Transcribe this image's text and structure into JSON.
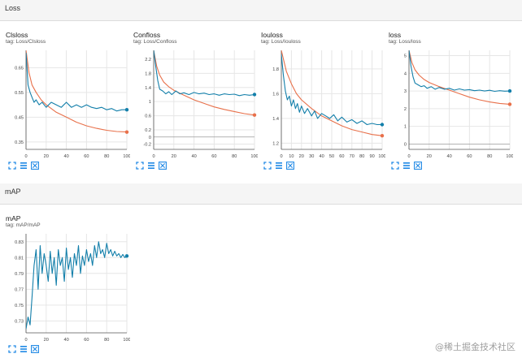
{
  "sections": {
    "loss": {
      "title": "Loss"
    },
    "map": {
      "title": "mAP"
    }
  },
  "colors": {
    "orange": "#e8704a",
    "blue": "#137faa",
    "grid": "#e6e6e6",
    "axis": "#555555"
  },
  "icons": [
    "fit-domain-icon",
    "toggle-log-icon",
    "expand-icon"
  ],
  "charts": [
    {
      "id": "clsloss",
      "title": "Clsloss",
      "tag": "tag: Loss/Clsloss",
      "chart_data": {
        "type": "line",
        "title": "Clsloss",
        "xlim": [
          0,
          100
        ],
        "ylim": [
          0.32,
          0.72
        ],
        "xticks": [
          "0",
          "20",
          "40",
          "60",
          "80",
          "100"
        ],
        "yticks": [
          "0.35",
          "0.45",
          "0.55",
          "0.65"
        ],
        "ytick_values": [
          0.35,
          0.45,
          0.55,
          0.65
        ],
        "series": [
          {
            "color": "orange",
            "x": [
              0,
              3,
              6,
              10,
              15,
              20,
              30,
              40,
              50,
              60,
              70,
              80,
              90,
              100
            ],
            "y": [
              0.72,
              0.63,
              0.58,
              0.55,
              0.52,
              0.5,
              0.47,
              0.45,
              0.43,
              0.415,
              0.405,
              0.397,
              0.392,
              0.39
            ]
          },
          {
            "color": "blue",
            "x": [
              0,
              1,
              2,
              4,
              6,
              8,
              10,
              13,
              16,
              20,
              25,
              30,
              35,
              40,
              45,
              50,
              55,
              60,
              65,
              70,
              75,
              80,
              85,
              90,
              95,
              100
            ],
            "y": [
              0.71,
              0.65,
              0.58,
              0.55,
              0.53,
              0.51,
              0.52,
              0.5,
              0.51,
              0.49,
              0.51,
              0.5,
              0.49,
              0.51,
              0.49,
              0.5,
              0.49,
              0.5,
              0.49,
              0.485,
              0.49,
              0.48,
              0.485,
              0.475,
              0.48,
              0.48
            ]
          }
        ]
      }
    },
    {
      "id": "confloss",
      "title": "Confloss",
      "tag": "tag: Loss/Confloss",
      "chart_data": {
        "type": "line",
        "title": "Confloss",
        "xlim": [
          0,
          100
        ],
        "ylim": [
          -0.35,
          2.45
        ],
        "xticks": [
          "0",
          "20",
          "40",
          "60",
          "80",
          "100"
        ],
        "yticks": [
          "-0.2",
          "0",
          "0.2",
          "0.6",
          "1",
          "1.4",
          "1.8",
          "2.2"
        ],
        "ytick_values": [
          -0.2,
          0,
          0.2,
          0.6,
          1,
          1.4,
          1.8,
          2.2
        ],
        "series": [
          {
            "color": "orange",
            "x": [
              0,
              3,
              6,
              10,
              15,
              20,
              30,
              40,
              50,
              60,
              70,
              80,
              90,
              100
            ],
            "y": [
              2.45,
              2.0,
              1.75,
              1.55,
              1.42,
              1.32,
              1.18,
              1.05,
              0.95,
              0.85,
              0.78,
              0.72,
              0.66,
              0.62
            ]
          },
          {
            "color": "blue",
            "x": [
              0,
              2,
              4,
              6,
              9,
              12,
              15,
              18,
              22,
              26,
              30,
              35,
              40,
              45,
              50,
              55,
              60,
              65,
              70,
              75,
              80,
              85,
              90,
              95,
              100
            ],
            "y": [
              2.45,
              2.0,
              1.6,
              1.35,
              1.3,
              1.22,
              1.28,
              1.2,
              1.3,
              1.22,
              1.25,
              1.2,
              1.26,
              1.22,
              1.24,
              1.2,
              1.22,
              1.18,
              1.22,
              1.2,
              1.21,
              1.17,
              1.2,
              1.18,
              1.2
            ]
          }
        ]
      }
    },
    {
      "id": "iouloss",
      "title": "Iouloss",
      "tag": "tag: Loss/Iouloss",
      "chart_data": {
        "type": "line",
        "title": "Iouloss",
        "xlim": [
          0,
          100
        ],
        "ylim": [
          1.15,
          1.95
        ],
        "xticks": [
          "0",
          "10",
          "20",
          "30",
          "40",
          "50",
          "60",
          "70",
          "80",
          "90",
          "100"
        ],
        "yticks": [
          "1.2",
          "1.4",
          "1.6",
          "1.8"
        ],
        "ytick_values": [
          1.2,
          1.4,
          1.6,
          1.8
        ],
        "series": [
          {
            "color": "orange",
            "x": [
              0,
              5,
              10,
              15,
              20,
              30,
              40,
              50,
              60,
              70,
              80,
              90,
              100
            ],
            "y": [
              1.95,
              1.78,
              1.68,
              1.6,
              1.55,
              1.48,
              1.42,
              1.38,
              1.34,
              1.31,
              1.29,
              1.27,
              1.26
            ]
          },
          {
            "color": "blue",
            "x": [
              0,
              2,
              4,
              6,
              8,
              10,
              12,
              14,
              16,
              18,
              20,
              23,
              26,
              30,
              33,
              36,
              40,
              44,
              48,
              52,
              56,
              60,
              65,
              70,
              75,
              80,
              85,
              90,
              95,
              100
            ],
            "y": [
              1.92,
              1.75,
              1.62,
              1.55,
              1.58,
              1.5,
              1.55,
              1.48,
              1.52,
              1.45,
              1.5,
              1.44,
              1.48,
              1.42,
              1.46,
              1.4,
              1.44,
              1.42,
              1.4,
              1.43,
              1.38,
              1.41,
              1.37,
              1.39,
              1.36,
              1.38,
              1.35,
              1.36,
              1.35,
              1.35
            ]
          }
        ]
      }
    },
    {
      "id": "loss",
      "title": "loss",
      "tag": "tag: Loss/loss",
      "chart_data": {
        "type": "line",
        "title": "loss",
        "xlim": [
          0,
          100
        ],
        "ylim": [
          -0.3,
          5.3
        ],
        "xticks": [
          "0",
          "20",
          "40",
          "60",
          "80",
          "100"
        ],
        "yticks": [
          "0",
          "1",
          "2",
          "3",
          "4",
          "5"
        ],
        "ytick_values": [
          0,
          1,
          2,
          3,
          4,
          5
        ],
        "series": [
          {
            "color": "orange",
            "x": [
              0,
              3,
              6,
              10,
              15,
              20,
              30,
              40,
              50,
              60,
              70,
              80,
              90,
              100
            ],
            "y": [
              5.3,
              4.6,
              4.2,
              3.9,
              3.65,
              3.48,
              3.25,
              3.05,
              2.85,
              2.65,
              2.5,
              2.38,
              2.3,
              2.25
            ]
          },
          {
            "color": "blue",
            "x": [
              0,
              2,
              4,
              6,
              9,
              12,
              15,
              18,
              22,
              26,
              30,
              35,
              40,
              45,
              50,
              55,
              60,
              65,
              70,
              75,
              80,
              85,
              90,
              95,
              100
            ],
            "y": [
              5.3,
              4.4,
              3.8,
              3.45,
              3.35,
              3.25,
              3.3,
              3.15,
              3.25,
              3.1,
              3.2,
              3.1,
              3.15,
              3.05,
              3.12,
              3.05,
              3.08,
              3.02,
              3.05,
              3.0,
              3.04,
              2.98,
              3.02,
              2.99,
              3.0
            ]
          }
        ]
      }
    },
    {
      "id": "map",
      "title": "mAP",
      "tag": "tag: mAP/mAP",
      "chart_data": {
        "type": "line",
        "title": "mAP",
        "xlim": [
          0,
          100
        ],
        "ylim": [
          0.715,
          0.84
        ],
        "xticks": [
          "0",
          "20",
          "40",
          "60",
          "80",
          "100"
        ],
        "yticks": [
          "0.73",
          "0.75",
          "0.77",
          "0.79",
          "0.81",
          "0.83"
        ],
        "ytick_values": [
          0.73,
          0.75,
          0.77,
          0.79,
          0.81,
          0.83
        ],
        "series": [
          {
            "color": "blue",
            "x": [
              0,
              2,
              4,
              6,
              8,
              10,
              12,
              14,
              16,
              18,
              20,
              22,
              24,
              26,
              28,
              30,
              32,
              34,
              36,
              38,
              40,
              42,
              44,
              46,
              48,
              50,
              52,
              54,
              56,
              58,
              60,
              62,
              64,
              66,
              68,
              70,
              72,
              74,
              76,
              78,
              80,
              82,
              84,
              86,
              88,
              90,
              92,
              94,
              96,
              98,
              100
            ],
            "y": [
              0.72,
              0.735,
              0.725,
              0.76,
              0.8,
              0.82,
              0.77,
              0.825,
              0.79,
              0.815,
              0.8,
              0.78,
              0.818,
              0.79,
              0.81,
              0.775,
              0.82,
              0.8,
              0.81,
              0.78,
              0.822,
              0.795,
              0.81,
              0.785,
              0.815,
              0.8,
              0.825,
              0.79,
              0.812,
              0.8,
              0.82,
              0.805,
              0.815,
              0.8,
              0.825,
              0.81,
              0.83,
              0.815,
              0.82,
              0.81,
              0.828,
              0.815,
              0.82,
              0.812,
              0.818,
              0.812,
              0.815,
              0.81,
              0.814,
              0.81,
              0.812
            ]
          }
        ]
      }
    }
  ],
  "watermark": "@稀土掘金技术社区"
}
